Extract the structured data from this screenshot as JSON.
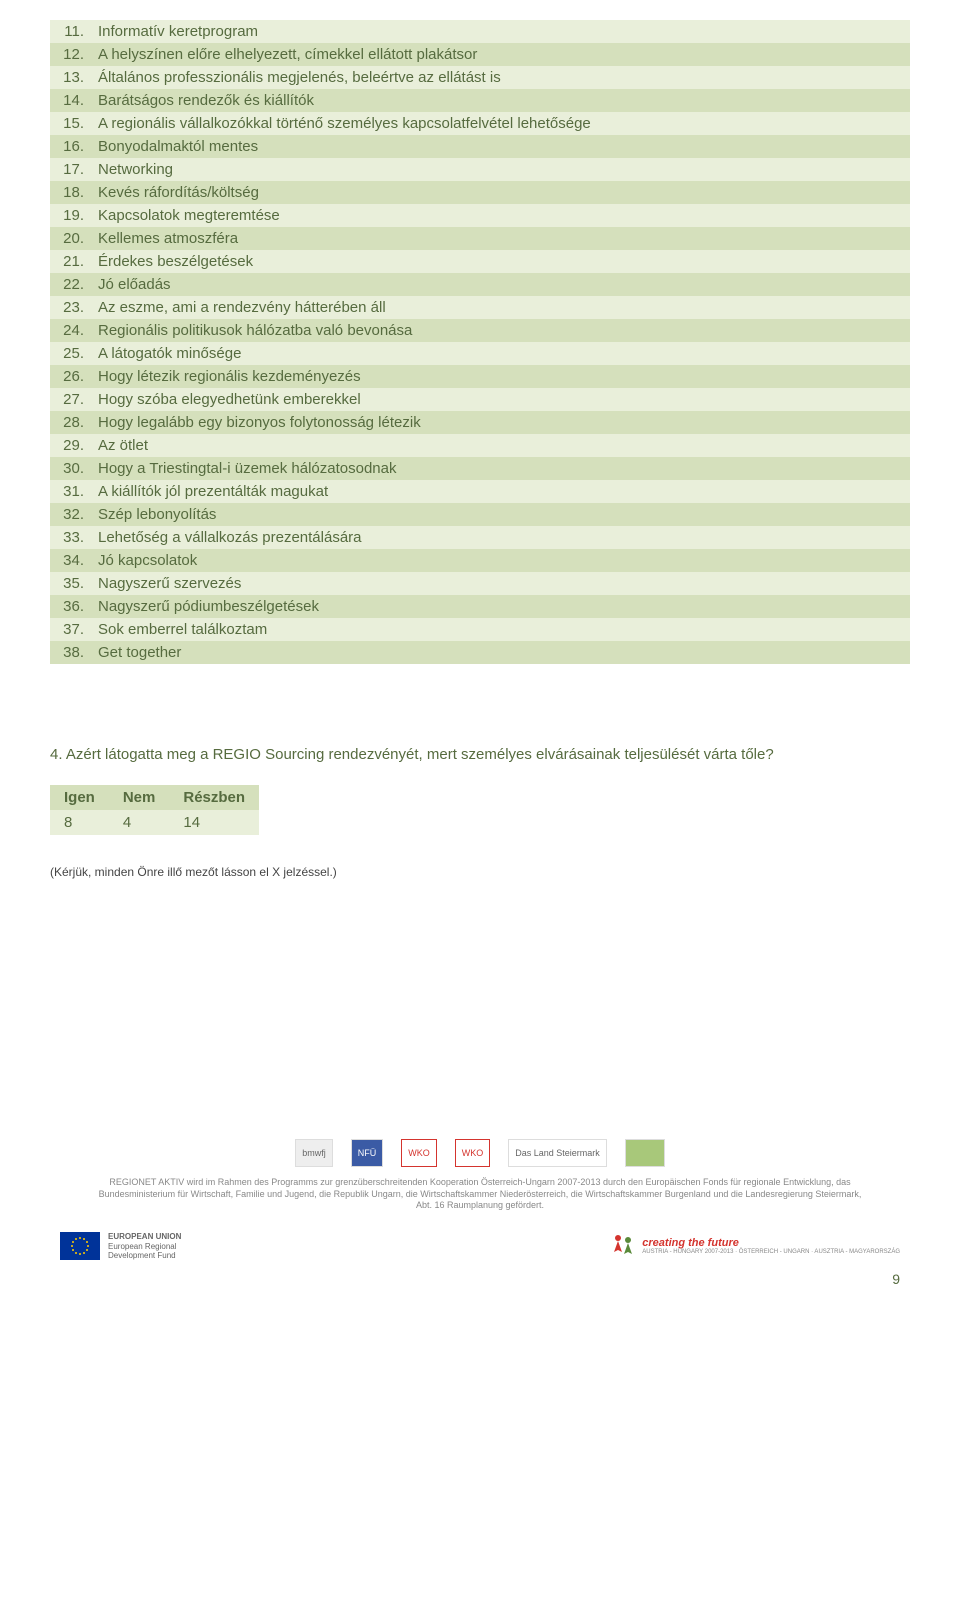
{
  "list": {
    "rows": [
      {
        "num": "11.",
        "text": "Informatív keretprogram"
      },
      {
        "num": "12.",
        "text": "A helyszínen előre elhelyezett, címekkel ellátott plakátsor"
      },
      {
        "num": "13.",
        "text": "Általános professzionális megjelenés, beleértve az ellátást is"
      },
      {
        "num": "14.",
        "text": "Barátságos rendezők és kiállítók"
      },
      {
        "num": "15.",
        "text": "A regionális vállalkozókkal történő személyes kapcsolatfelvétel lehetősége"
      },
      {
        "num": "16.",
        "text": "Bonyodalmaktól mentes"
      },
      {
        "num": "17.",
        "text": "Networking"
      },
      {
        "num": "18.",
        "text": "Kevés ráfordítás/költség"
      },
      {
        "num": "19.",
        "text": "Kapcsolatok megteremtése"
      },
      {
        "num": "20.",
        "text": "Kellemes atmoszféra"
      },
      {
        "num": "21.",
        "text": "Érdekes beszélgetések"
      },
      {
        "num": "22.",
        "text": "Jó előadás"
      },
      {
        "num": "23.",
        "text": "Az eszme, ami a rendezvény hátterében áll"
      },
      {
        "num": "24.",
        "text": "Regionális politikusok hálózatba való bevonása"
      },
      {
        "num": "25.",
        "text": "A látogatók minősége"
      },
      {
        "num": "26.",
        "text": "Hogy létezik regionális kezdeményezés"
      },
      {
        "num": "27.",
        "text": "Hogy szóba elegyedhetünk emberekkel"
      },
      {
        "num": "28.",
        "text": "Hogy legalább egy bizonyos folytonosság létezik"
      },
      {
        "num": "29.",
        "text": "Az ötlet"
      },
      {
        "num": "30.",
        "text": "Hogy a Triestingtal-i üzemek hálózatosodnak"
      },
      {
        "num": "31.",
        "text": "A kiállítók jól prezentálták magukat"
      },
      {
        "num": "32.",
        "text": "Szép lebonyolítás"
      },
      {
        "num": "33.",
        "text": "Lehetőség a vállalkozás prezentálására"
      },
      {
        "num": "34.",
        "text": "Jó kapcsolatok"
      },
      {
        "num": "35.",
        "text": "Nagyszerű szervezés"
      },
      {
        "num": "36.",
        "text": "Nagyszerű pódiumbeszélgetések"
      },
      {
        "num": "37.",
        "text": "Sok emberrel találkoztam"
      },
      {
        "num": "38.",
        "text": "Get together"
      }
    ],
    "colors": {
      "light": "#e9efda",
      "dark": "#d5e0bc",
      "text": "#566b3f"
    }
  },
  "question": "4. Azért látogatta meg a REGIO Sourcing rendezvényét, mert személyes elvárásainak teljesülését várta tőle?",
  "answers": {
    "headers": [
      "Igen",
      "Nem",
      "Részben"
    ],
    "values": [
      "8",
      "4",
      "14"
    ]
  },
  "note": "(Kérjük, minden Önre illő mezőt lásson el X jelzéssel.)",
  "footer": {
    "logos": [
      "bmwfj",
      "NFÜ",
      "WKO",
      "WKO",
      "Das Land Steiermark",
      ""
    ],
    "text": "REGIONET AKTIV wird im Rahmen des Programms zur grenzüberschreitenden Kooperation Österreich-Ungarn 2007-2013 durch den Europäischen Fonds für regionale Entwicklung, das Bundesministerium für Wirtschaft, Familie und Jugend, die Republik Ungarn, die Wirtschaftskammer Niederösterreich, die Wirtschaftskammer Burgenland und die Landesregierung Steiermark, Abt. 16 Raumplanung gefördert.",
    "eu": {
      "line1": "EUROPEAN UNION",
      "line2": "European Regional",
      "line3": "Development Fund"
    },
    "ctf": {
      "title": "creating the future",
      "sub": "AUSTRIA - HUNGARY 2007-2013 · ÖSTERREICH - UNGARN · AUSZTRIA - MAGYARORSZÁG"
    }
  },
  "pageNumber": "9"
}
